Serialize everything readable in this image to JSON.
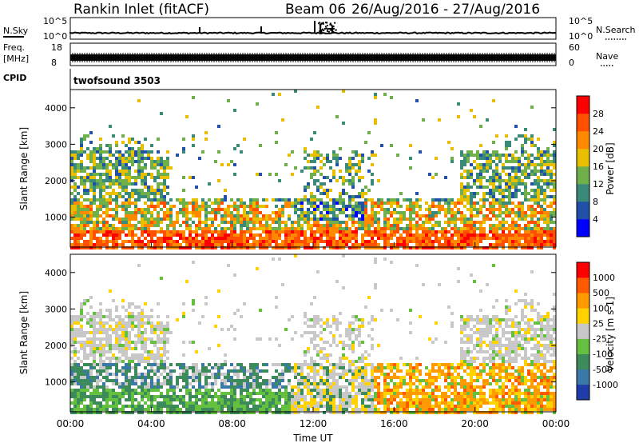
{
  "header": {
    "site": "Rankin Inlet (fitACF)",
    "beam": "Beam 06",
    "dates": "26/Aug/2016 - 27/Aug/2016"
  },
  "top_panels": {
    "nsky_label": "N.Sky",
    "nsky_ticks": [
      "10^5",
      "10^0"
    ],
    "nsearch_label": "N.Search",
    "nsearch_ticks": [
      "10^5",
      "10^0"
    ],
    "freq_label_1": "Freq.",
    "freq_label_2": "[MHz]",
    "freq_ticks": [
      "18",
      "8"
    ],
    "nave_label": "Nave",
    "nave_ticks": [
      "60",
      "0"
    ],
    "cpid_label": "CPID",
    "cpid_value": "twofsound 3503"
  },
  "chart_data": [
    {
      "type": "heatmap",
      "title": "",
      "xlabel": "",
      "ylabel": "Slant Range [km]",
      "ylim": [
        180,
        4500
      ],
      "yticks": [
        "1000",
        "2000",
        "3000",
        "4000"
      ],
      "colorbar_label": "Power [dB]",
      "colorbar_ticks": [
        "28",
        "24",
        "20",
        "16",
        "12",
        "8",
        "4"
      ],
      "colors": [
        "#0000ff",
        "#2050a8",
        "#3a8a7a",
        "#6fb04a",
        "#e8c000",
        "#ff8a00",
        "#ff5000",
        "#ff0000"
      ]
    },
    {
      "type": "heatmap",
      "title": "",
      "xlabel": "Time UT",
      "ylabel": "Slant Range [km]",
      "ylim": [
        180,
        4500
      ],
      "yticks": [
        "1000",
        "2000",
        "3000",
        "4000"
      ],
      "xticks": [
        "00:00",
        "04:00",
        "08:00",
        "12:00",
        "16:00",
        "20:00",
        "00:00"
      ],
      "colorbar_label": "Velocity [m s-1]",
      "colorbar_ticks": [
        "1000",
        "500",
        "100",
        "25",
        "-25",
        "-100",
        "-500",
        "-1000"
      ],
      "colors": [
        "#1e3ca8",
        "#3a78a8",
        "#3d8a5a",
        "#66c040",
        "#c8c8c8",
        "#ffd200",
        "#ff9a00",
        "#ff5a00",
        "#ff0000"
      ]
    }
  ]
}
